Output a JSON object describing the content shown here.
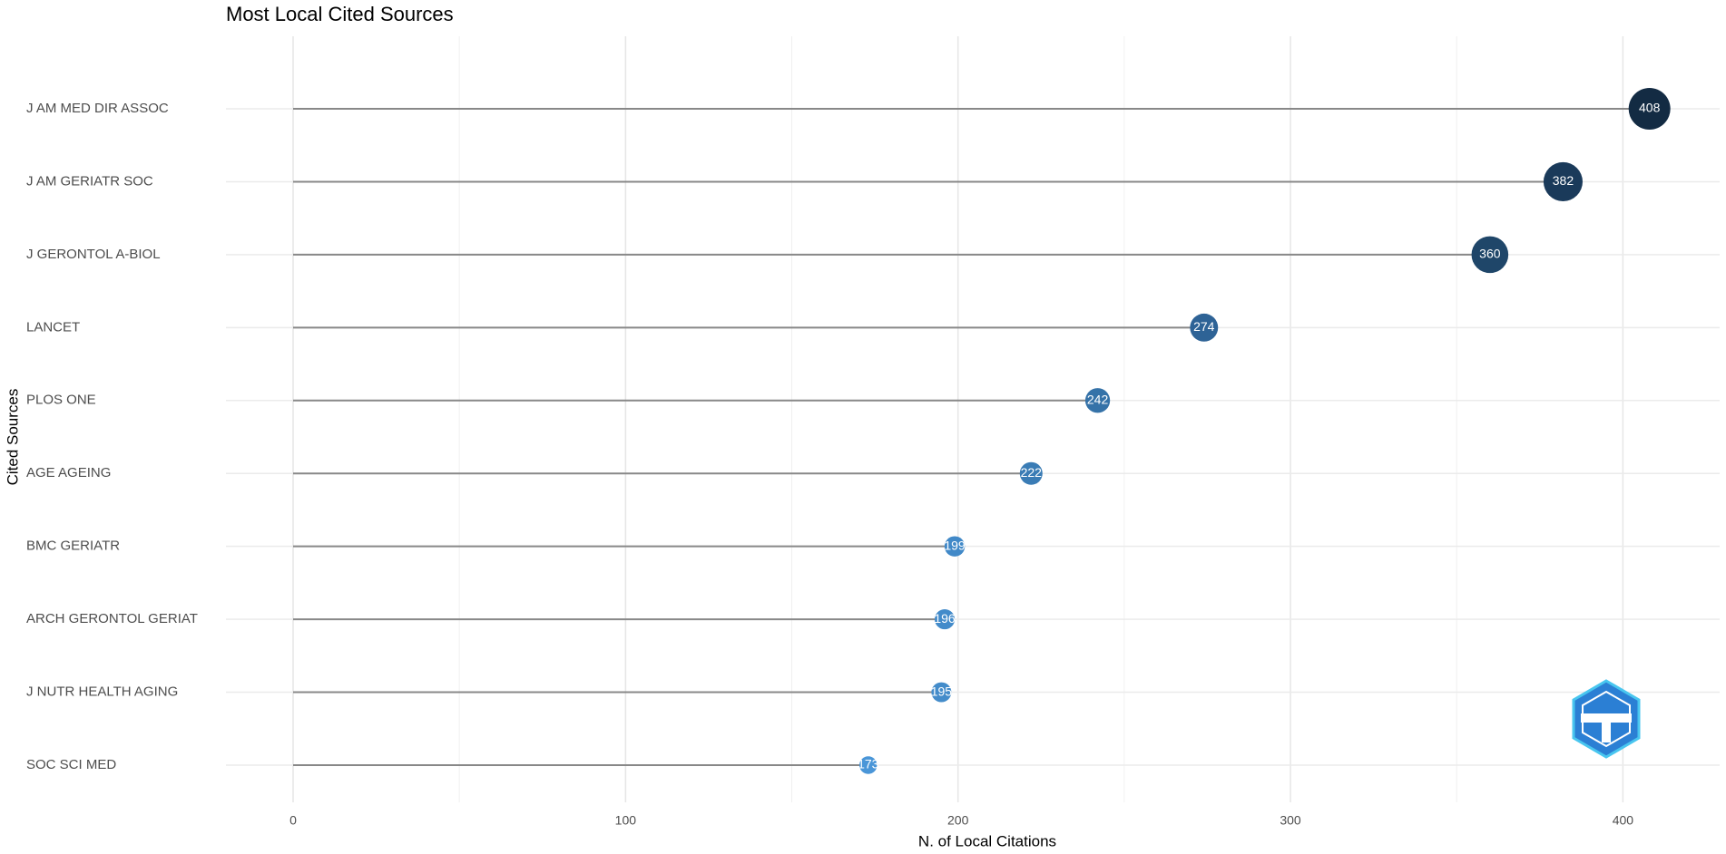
{
  "chart_data": {
    "type": "lollipop",
    "title": "Most Local Cited Sources",
    "x_label": "N. of Local Citations",
    "y_label": "Cited Sources",
    "categories": [
      "J AM MED DIR ASSOC",
      "J AM GERIATR SOC",
      "J GERONTOL A-BIOL",
      "LANCET",
      "PLOS ONE",
      "AGE AGEING",
      "BMC GERIATR",
      "ARCH GERONTOL GERIAT",
      "J NUTR HEALTH AGING",
      "SOC SCI MED"
    ],
    "values": [
      408,
      382,
      360,
      274,
      242,
      222,
      199,
      196,
      195,
      173
    ],
    "colors": [
      "#132b43",
      "#1a3a5a",
      "#1f4669",
      "#2e6396",
      "#3572a8",
      "#3a7cb5",
      "#4189c8",
      "#438bca",
      "#448cca",
      "#4a96d8"
    ],
    "line_color": "#888888",
    "xlim": [
      -20.2,
      429.1
    ],
    "xticks": [
      0,
      100,
      200,
      300,
      400
    ],
    "xminorticks": [
      50,
      150,
      250,
      350
    ],
    "grid": true
  }
}
